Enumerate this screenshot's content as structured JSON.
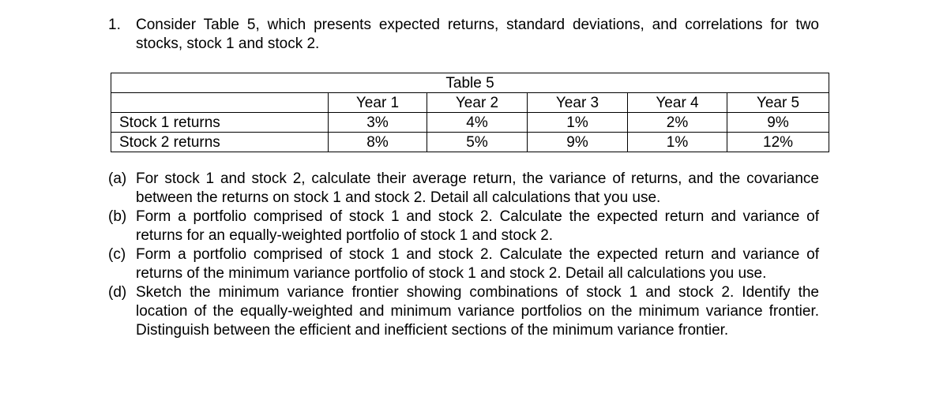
{
  "question": {
    "number": "1.",
    "text": "Consider Table 5, which presents expected returns, standard deviations, and correlations for two stocks, stock 1 and stock 2."
  },
  "table": {
    "caption": "Table 5",
    "headers": [
      "",
      "Year 1",
      "Year 2",
      "Year 3",
      "Year 4",
      "Year 5"
    ],
    "rows": [
      {
        "label": "Stock 1 returns",
        "values": [
          "3%",
          "4%",
          "1%",
          "2%",
          "9%"
        ]
      },
      {
        "label": "Stock 2 returns",
        "values": [
          "8%",
          "5%",
          "9%",
          "1%",
          "12%"
        ]
      }
    ]
  },
  "parts": [
    {
      "label": "(a)",
      "text": "For stock 1 and stock 2, calculate their average return, the variance of returns, and the covariance between the returns on stock 1 and stock 2. Detail all calculations that you use."
    },
    {
      "label": "(b)",
      "text": "Form a portfolio comprised of stock 1 and stock 2. Calculate the expected return and variance of returns for an equally-weighted portfolio of stock 1 and stock 2."
    },
    {
      "label": "(c)",
      "text": "Form a portfolio comprised of stock 1 and stock 2. Calculate the expected return and variance of returns of the minimum variance portfolio of stock 1 and stock 2. Detail all calculations you use."
    },
    {
      "label": "(d)",
      "text": "Sketch the minimum variance frontier showing combinations of stock 1 and stock 2. Identify the location of the equally-weighted and minimum variance portfolios on the minimum variance frontier. Distinguish between the efficient and inefficient sections of the minimum variance frontier."
    }
  ]
}
